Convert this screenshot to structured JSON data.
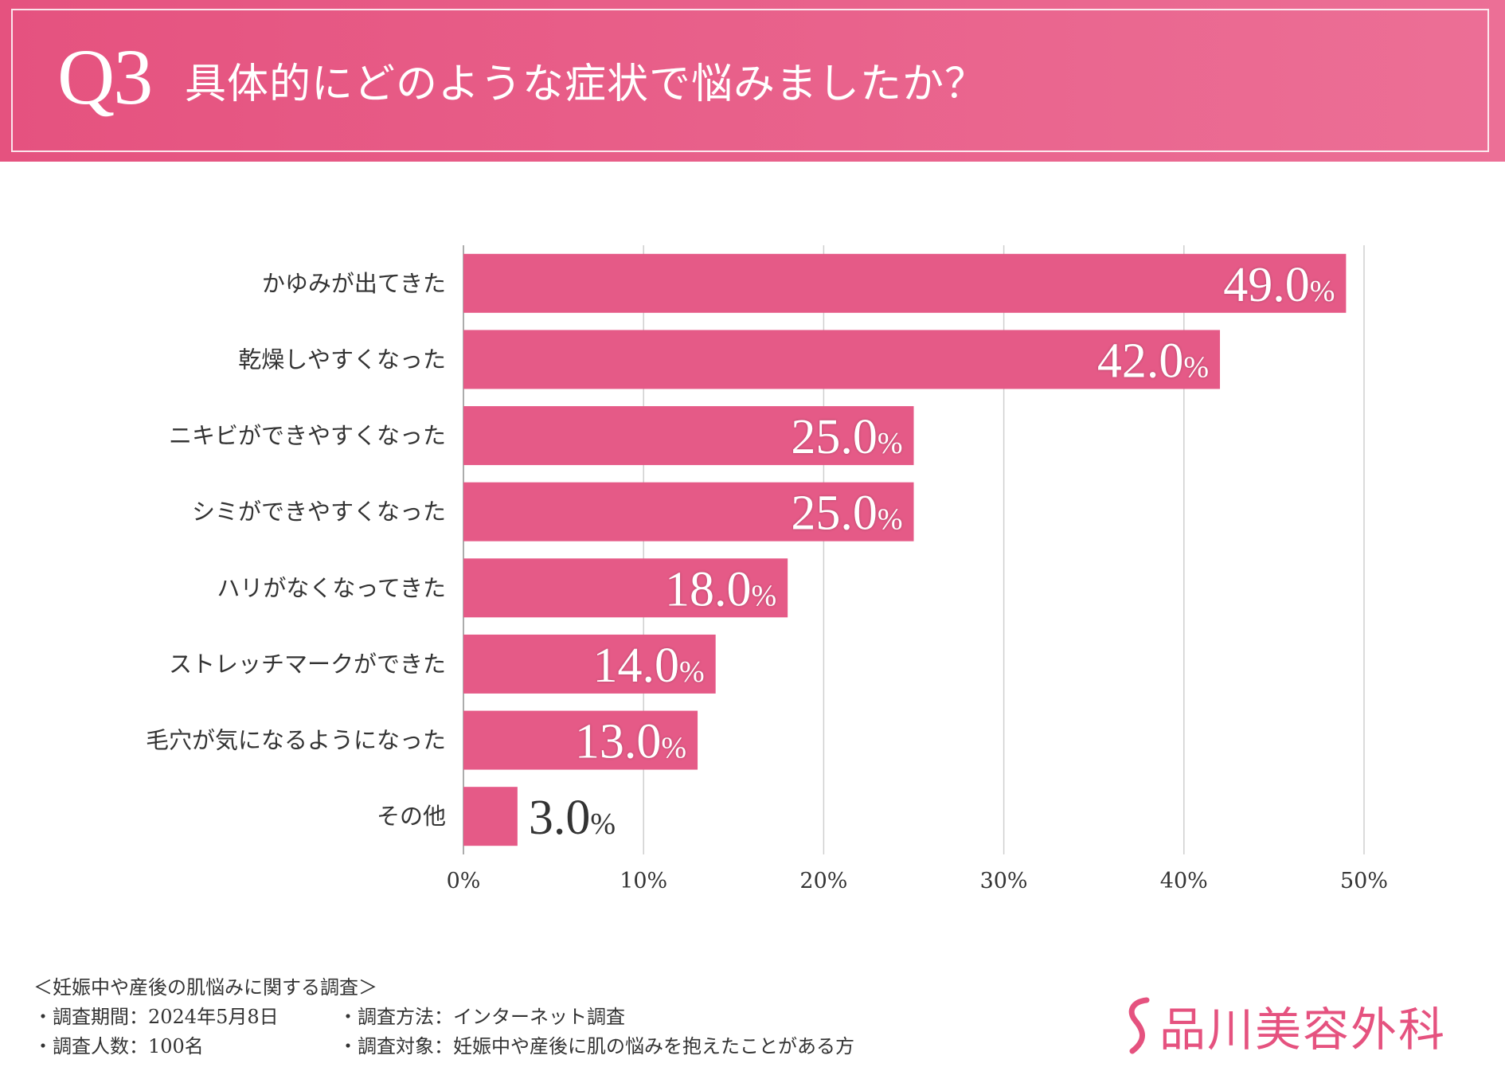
{
  "header": {
    "q_number": "Q3",
    "title": "具体的にどのような症状で悩みましたか？"
  },
  "chart_data": {
    "type": "bar",
    "orientation": "horizontal",
    "title": "具体的にどのような症状で悩みましたか？",
    "categories": [
      "かゆみが出てきた",
      "乾燥しやすくなった",
      "ニキビができやすくなった",
      "シミができやすくなった",
      "ハリがなくなってきた",
      "ストレッチマークができた",
      "毛穴が気になるようになった",
      "その他"
    ],
    "values": [
      49.0,
      42.0,
      25.0,
      25.0,
      18.0,
      14.0,
      13.0,
      3.0
    ],
    "value_labels": [
      "49.0",
      "42.0",
      "25.0",
      "25.0",
      "18.0",
      "14.0",
      "13.0",
      "3.0"
    ],
    "value_suffix": "%",
    "xlim": [
      0,
      50
    ],
    "x_ticks": [
      0,
      10,
      20,
      30,
      40,
      50
    ],
    "x_tick_labels": [
      "0%",
      "10%",
      "20%",
      "30%",
      "40%",
      "50%"
    ],
    "grid": true,
    "bar_color": "#e55a87"
  },
  "footer": {
    "survey_title": "＜妊娠中や産後の肌悩みに関する調査＞",
    "period": "・調査期間：2024年5月8日",
    "method": "・調査方法：インターネット調査",
    "respondents": "・調査人数：100名",
    "target": "・調査対象：妊娠中や産後に肌の悩みを抱えたことがある方"
  },
  "logo": {
    "text": "品川美容外科",
    "color": "#e5527f"
  }
}
